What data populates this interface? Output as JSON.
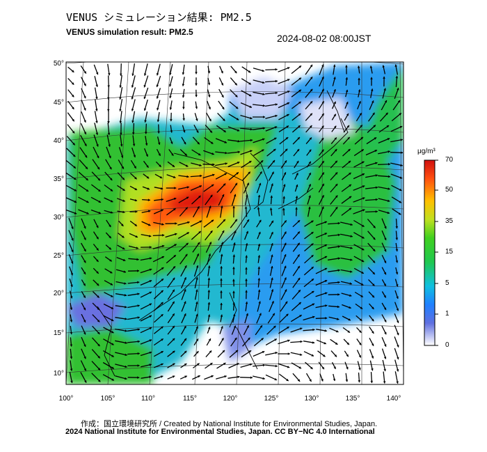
{
  "header": {
    "title_jp": "VENUS シミュレーション結果: PM2.5",
    "title_en": "VENUS simulation result: PM2.5",
    "timestamp": "2024-08-02 08:00JST"
  },
  "map": {
    "lat_labels": [
      "50°",
      "45°",
      "40°",
      "35°",
      "30°",
      "25°",
      "20°",
      "15°",
      "10°"
    ],
    "lon_labels": [
      "100°",
      "105°",
      "110°",
      "115°",
      "120°",
      "125°",
      "130°",
      "135°",
      "140°"
    ]
  },
  "colorbar": {
    "unit": "μg/m³",
    "ticks": [
      "70",
      "50",
      "35",
      "15",
      "5",
      "1",
      "0"
    ],
    "colors": [
      "#ffffff",
      "#4060e0",
      "#1aa0ff",
      "#20d0c0",
      "#30c030",
      "#a0e020",
      "#ffd000",
      "#ff8000",
      "#e01010"
    ]
  },
  "footer": {
    "credit_line1": "作成：国立環境研究所 / Created by National Institute for Environmental Studies, Japan.",
    "credit_line2": "2024 National Institute for Environmental Studies, Japan. CC BY−NC 4.0 International"
  }
}
